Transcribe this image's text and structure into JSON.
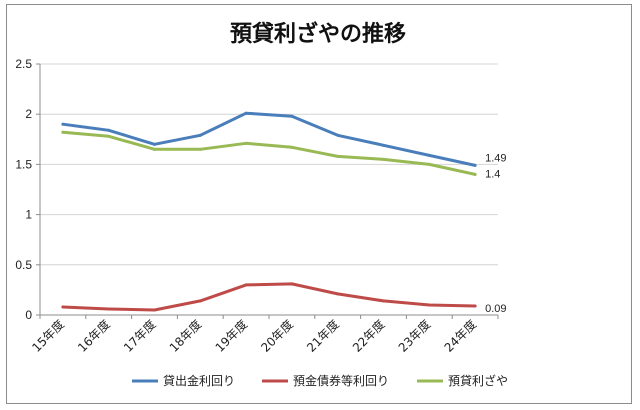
{
  "chart_data": {
    "type": "line",
    "title": "預貸利ざやの推移",
    "categories": [
      "15年度",
      "16年度",
      "17年度",
      "18年度",
      "19年度",
      "20年度",
      "21年度",
      "22年度",
      "23年度",
      "24年度"
    ],
    "ylim": [
      0,
      2.5
    ],
    "yticks": [
      "0",
      "0.5",
      "1",
      "1.5",
      "2",
      "2.5"
    ],
    "grid": "horizontal",
    "legend_position": "bottom",
    "series": [
      {
        "name": "貸出金利回り",
        "color": "#4A7EBB",
        "values": [
          1.9,
          1.84,
          1.7,
          1.79,
          2.01,
          1.98,
          1.79,
          1.69,
          1.59,
          1.49
        ],
        "end_label": "1.49"
      },
      {
        "name": "預金債券等利回り",
        "color": "#BE4B48",
        "values": [
          0.08,
          0.06,
          0.05,
          0.14,
          0.3,
          0.31,
          0.21,
          0.14,
          0.1,
          0.09
        ],
        "end_label": "0.09"
      },
      {
        "name": "預貸利ざや",
        "color": "#98B954",
        "values": [
          1.82,
          1.78,
          1.65,
          1.65,
          1.71,
          1.67,
          1.58,
          1.55,
          1.5,
          1.4
        ],
        "end_label": "1.4"
      }
    ]
  }
}
